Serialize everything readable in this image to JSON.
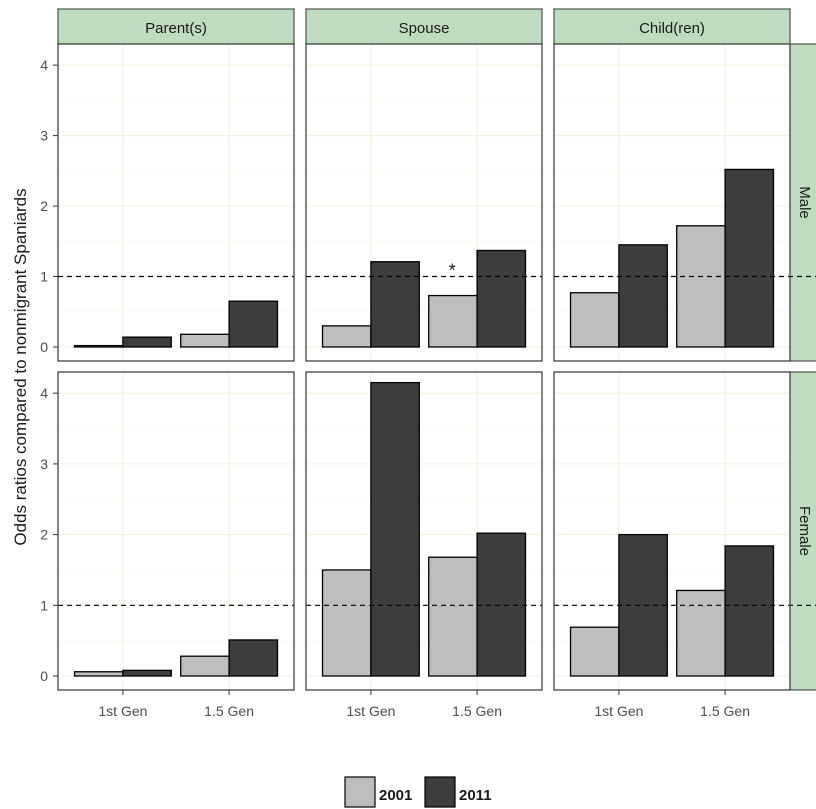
{
  "chart_data": {
    "type": "bar",
    "ylabel": "Odds ratios compared to nonmigrant Spaniards",
    "xlabel": "",
    "ylim": [
      0,
      4.3
    ],
    "yticks": [
      0,
      1,
      2,
      3,
      4
    ],
    "reference_line": 1,
    "grid": true,
    "legend_position": "bottom",
    "categories": [
      "1st Gen",
      "1.5 Gen"
    ],
    "columns": [
      "Parent(s)",
      "Spouse",
      "Child(ren)"
    ],
    "rows": [
      "Male",
      "Female"
    ],
    "series": [
      {
        "name": "2001",
        "color": "#bebebe"
      },
      {
        "name": "2011",
        "color": "#3d3d3d"
      }
    ],
    "panels": [
      {
        "row": "Male",
        "column": "Parent(s)",
        "values": {
          "2001": [
            0.02,
            0.18
          ],
          "2011": [
            0.14,
            0.65
          ]
        },
        "annotation": ""
      },
      {
        "row": "Male",
        "column": "Spouse",
        "values": {
          "2001": [
            0.3,
            0.73
          ],
          "2011": [
            1.21,
            1.37
          ]
        },
        "annotation": "*"
      },
      {
        "row": "Male",
        "column": "Child(ren)",
        "values": {
          "2001": [
            0.77,
            1.72
          ],
          "2011": [
            1.45,
            2.52
          ]
        },
        "annotation": ""
      },
      {
        "row": "Female",
        "column": "Parent(s)",
        "values": {
          "2001": [
            0.06,
            0.28
          ],
          "2011": [
            0.08,
            0.51
          ]
        },
        "annotation": ""
      },
      {
        "row": "Female",
        "column": "Spouse",
        "values": {
          "2001": [
            1.5,
            1.68
          ],
          "2011": [
            4.15,
            2.02
          ]
        },
        "annotation": ""
      },
      {
        "row": "Female",
        "column": "Child(ren)",
        "values": {
          "2001": [
            0.69,
            1.21
          ],
          "2011": [
            2.0,
            1.84
          ]
        },
        "annotation": ""
      }
    ]
  }
}
